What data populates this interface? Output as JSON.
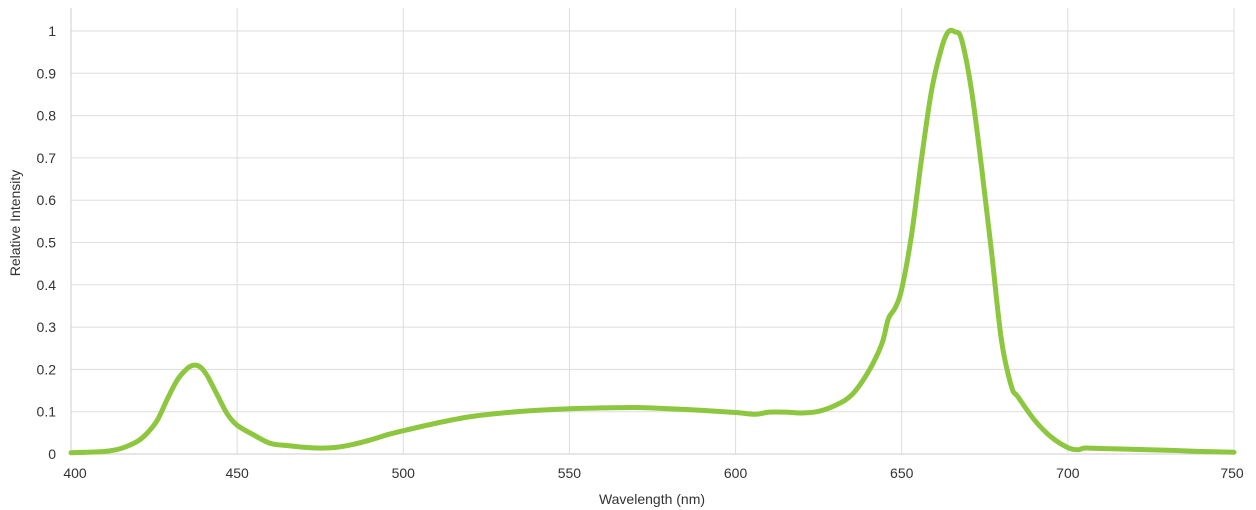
{
  "chart_data": {
    "type": "line",
    "title": "",
    "xlabel": "Wavelength (nm)",
    "ylabel": "Relative Intensity",
    "xlim": [
      400,
      750
    ],
    "ylim": [
      0,
      1
    ],
    "x_ticks": [
      "400",
      "450",
      "500",
      "550",
      "600",
      "650",
      "700",
      "750"
    ],
    "y_ticks": [
      "0",
      "0.1",
      "0.2",
      "0.3",
      "0.4",
      "0.5",
      "0.6",
      "0.7",
      "0.8",
      "0.9",
      "1"
    ],
    "grid": "vertical and horizontal",
    "line_color": "#8dc63f",
    "series": [
      {
        "points": [
          [
            400,
            0.003
          ],
          [
            410,
            0.006
          ],
          [
            415,
            0.013
          ],
          [
            420,
            0.03
          ],
          [
            423,
            0.05
          ],
          [
            426,
            0.08
          ],
          [
            429,
            0.13
          ],
          [
            432,
            0.175
          ],
          [
            435,
            0.202
          ],
          [
            437,
            0.21
          ],
          [
            439,
            0.205
          ],
          [
            441,
            0.185
          ],
          [
            444,
            0.14
          ],
          [
            447,
            0.095
          ],
          [
            450,
            0.068
          ],
          [
            455,
            0.045
          ],
          [
            460,
            0.025
          ],
          [
            465,
            0.02
          ],
          [
            470,
            0.016
          ],
          [
            475,
            0.014
          ],
          [
            480,
            0.016
          ],
          [
            485,
            0.023
          ],
          [
            490,
            0.033
          ],
          [
            495,
            0.045
          ],
          [
            500,
            0.055
          ],
          [
            510,
            0.073
          ],
          [
            520,
            0.088
          ],
          [
            530,
            0.097
          ],
          [
            540,
            0.103
          ],
          [
            550,
            0.107
          ],
          [
            560,
            0.109
          ],
          [
            570,
            0.11
          ],
          [
            580,
            0.107
          ],
          [
            590,
            0.103
          ],
          [
            600,
            0.098
          ],
          [
            606,
            0.094
          ],
          [
            610,
            0.099
          ],
          [
            615,
            0.099
          ],
          [
            620,
            0.097
          ],
          [
            625,
            0.101
          ],
          [
            630,
            0.115
          ],
          [
            635,
            0.14
          ],
          [
            640,
            0.195
          ],
          [
            644,
            0.26
          ],
          [
            646,
            0.32
          ],
          [
            648,
            0.345
          ],
          [
            650,
            0.39
          ],
          [
            653,
            0.52
          ],
          [
            656,
            0.7
          ],
          [
            659,
            0.86
          ],
          [
            662,
            0.96
          ],
          [
            664,
            0.998
          ],
          [
            666,
            0.998
          ],
          [
            668,
            0.98
          ],
          [
            671,
            0.86
          ],
          [
            674,
            0.68
          ],
          [
            677,
            0.48
          ],
          [
            680,
            0.27
          ],
          [
            683,
            0.16
          ],
          [
            685,
            0.135
          ],
          [
            690,
            0.08
          ],
          [
            695,
            0.04
          ],
          [
            700,
            0.015
          ],
          [
            703,
            0.01
          ],
          [
            705,
            0.014
          ],
          [
            710,
            0.013
          ],
          [
            720,
            0.011
          ],
          [
            730,
            0.009
          ],
          [
            740,
            0.006
          ],
          [
            750,
            0.004
          ]
        ]
      }
    ]
  }
}
